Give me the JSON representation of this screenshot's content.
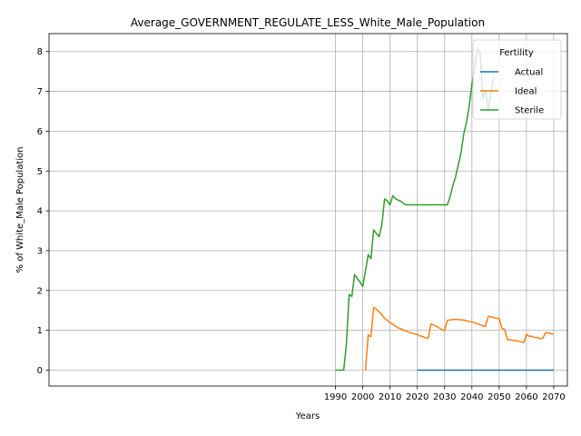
{
  "chart_data": {
    "type": "line",
    "title": "Average_GOVERNMENT_REGULATE_LESS_White_Male_Population",
    "xlabel": "Years",
    "ylabel": "% of White_Male Population",
    "xlim": [
      1885,
      2075
    ],
    "ylim": [
      -0.4,
      8.45
    ],
    "xticks": [
      1990,
      2000,
      2010,
      2020,
      2030,
      2040,
      2050,
      2060,
      2070
    ],
    "yticks": [
      0,
      1,
      2,
      3,
      4,
      5,
      6,
      7,
      8
    ],
    "grid": true,
    "legend": {
      "title": "Fertility",
      "placement": "top-right"
    },
    "series": [
      {
        "name": "Actual",
        "color": "#1f77b4",
        "x": [
          2020,
          2070
        ],
        "y": [
          0,
          0
        ]
      },
      {
        "name": "Ideal",
        "color": "#ff7f0e",
        "x": [
          2001,
          2002,
          2003,
          2004,
          2005,
          2006,
          2007,
          2008,
          2009,
          2010,
          2011,
          2012,
          2013,
          2014,
          2015,
          2016,
          2017,
          2018,
          2019,
          2020,
          2021,
          2022,
          2023,
          2024,
          2025,
          2026,
          2027,
          2028,
          2029,
          2030,
          2031,
          2032,
          2033,
          2034,
          2035,
          2036,
          2037,
          2038,
          2039,
          2040,
          2041,
          2042,
          2043,
          2044,
          2045,
          2046,
          2047,
          2048,
          2049,
          2050,
          2051,
          2052,
          2053,
          2054,
          2055,
          2056,
          2057,
          2058,
          2059,
          2060,
          2061,
          2062,
          2063,
          2064,
          2065,
          2066,
          2067,
          2068,
          2069,
          2070
        ],
        "y": [
          0.0,
          0.88,
          0.84,
          1.57,
          1.53,
          1.46,
          1.39,
          1.3,
          1.25,
          1.19,
          1.15,
          1.1,
          1.06,
          1.04,
          1.0,
          0.98,
          0.95,
          0.93,
          0.91,
          0.89,
          0.86,
          0.84,
          0.81,
          0.8,
          1.16,
          1.13,
          1.1,
          1.06,
          1.02,
          0.98,
          1.25,
          1.26,
          1.27,
          1.27,
          1.27,
          1.26,
          1.26,
          1.24,
          1.22,
          1.21,
          1.19,
          1.16,
          1.14,
          1.11,
          1.1,
          1.35,
          1.34,
          1.32,
          1.3,
          1.3,
          1.05,
          1.02,
          0.77,
          0.76,
          0.75,
          0.74,
          0.73,
          0.71,
          0.69,
          0.9,
          0.85,
          0.85,
          0.82,
          0.82,
          0.79,
          0.8,
          0.94,
          0.94,
          0.91,
          0.91
        ]
      },
      {
        "name": "Sterile",
        "color": "#2ca02c",
        "x": [
          1990,
          1991,
          1992,
          1993,
          1994,
          1995,
          1996,
          1997,
          1998,
          1999,
          2000,
          2001,
          2002,
          2003,
          2004,
          2005,
          2006,
          2007,
          2008,
          2009,
          2010,
          2011,
          2012,
          2013,
          2014,
          2015,
          2016,
          2017,
          2018,
          2019,
          2020,
          2021,
          2022,
          2023,
          2024,
          2025,
          2026,
          2027,
          2028,
          2029,
          2030,
          2031,
          2032,
          2033,
          2034,
          2035,
          2036,
          2037,
          2038,
          2039,
          2040,
          2041,
          2042,
          2043,
          2044,
          2045,
          2046,
          2047,
          2048
        ],
        "y": [
          0,
          0,
          0,
          0,
          0.65,
          1.9,
          1.85,
          2.4,
          2.3,
          2.21,
          2.1,
          2.5,
          2.9,
          2.8,
          3.52,
          3.43,
          3.35,
          3.65,
          4.3,
          4.25,
          4.15,
          4.38,
          4.3,
          4.27,
          4.24,
          4.18,
          4.15,
          4.15,
          4.15,
          4.15,
          4.15,
          4.15,
          4.15,
          4.15,
          4.15,
          4.15,
          4.15,
          4.15,
          4.15,
          4.15,
          4.15,
          4.15,
          4.35,
          4.63,
          4.85,
          5.15,
          5.45,
          5.92,
          6.22,
          6.62,
          7.18,
          7.55,
          8.05,
          7.98,
          6.82,
          7.03,
          6.52,
          6.96,
          7.34
        ]
      }
    ]
  }
}
